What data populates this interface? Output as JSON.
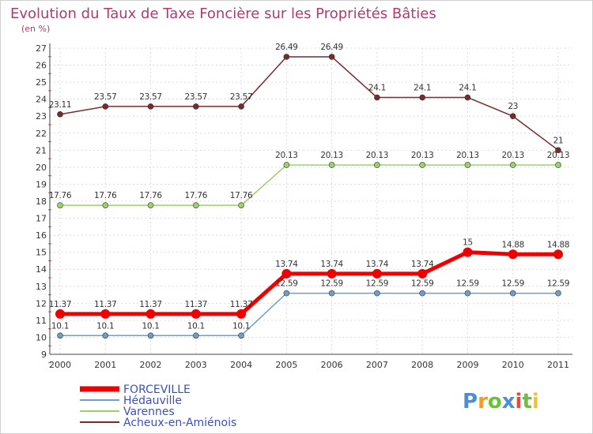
{
  "chart_data": {
    "type": "line",
    "title": "Evolution du Taux de Taxe Foncière sur les Propriétés Bâties",
    "subtitle": "(en %)",
    "xlabel": "",
    "ylabel": "(en %)",
    "ylim": [
      9,
      27
    ],
    "yticks": [
      9,
      10,
      11,
      12,
      13,
      14,
      15,
      16,
      17,
      18,
      19,
      20,
      21,
      22,
      23,
      24,
      25,
      26,
      27
    ],
    "x": [
      "2000",
      "2001",
      "2002",
      "2003",
      "2004",
      "2005",
      "2006",
      "2007",
      "2008",
      "2009",
      "2010",
      "2011"
    ],
    "grid": true,
    "legend_position": "bottom-left",
    "series": [
      {
        "name": "FORCEVILLE",
        "color": "#ee0000",
        "values": [
          11.37,
          11.37,
          11.37,
          11.37,
          11.37,
          13.74,
          13.74,
          13.74,
          13.74,
          15,
          14.88,
          14.88
        ],
        "labels": [
          "11.37",
          "11.37",
          "11.37",
          "11.37",
          "11.37",
          "13.74",
          "13.74",
          "13.74",
          "13.74",
          "15",
          "14.88",
          "14.88"
        ]
      },
      {
        "name": "Hédauville",
        "color": "#6f9fc9",
        "values": [
          10.1,
          10.1,
          10.1,
          10.1,
          10.1,
          12.59,
          12.59,
          12.59,
          12.59,
          12.59,
          12.59,
          12.59
        ],
        "labels": [
          "10.1",
          "10.1",
          "10.1",
          "10.1",
          "10.1",
          "12.59",
          "12.59",
          "12.59",
          "12.59",
          "12.59",
          "12.59",
          "12.59"
        ]
      },
      {
        "name": "Varennes",
        "color": "#9ad26a",
        "values": [
          17.76,
          17.76,
          17.76,
          17.76,
          17.76,
          20.13,
          20.13,
          20.13,
          20.13,
          20.13,
          20.13,
          20.13
        ],
        "labels": [
          "17.76",
          "17.76",
          "17.76",
          "17.76",
          "17.76",
          "20.13",
          "20.13",
          "20.13",
          "20.13",
          "20.13",
          "20.13",
          "20.13"
        ]
      },
      {
        "name": "Acheux-en-Amiénois",
        "color": "#7a2a2a",
        "values": [
          23.11,
          23.57,
          23.57,
          23.57,
          23.57,
          26.49,
          26.49,
          24.1,
          24.1,
          24.1,
          23,
          21
        ],
        "labels": [
          "23.11",
          "23.57",
          "23.57",
          "23.57",
          "23.57",
          "26.49",
          "26.49",
          "24.1",
          "24.1",
          "24.1",
          "23",
          "21"
        ]
      }
    ]
  },
  "watermark": {
    "text": "Proxiti",
    "colors": [
      "#4a8fd8",
      "#f39a2a",
      "#6cbf3a",
      "#4a8fd8",
      "#e84a3a",
      "#6cbf3a",
      "#f3c42a"
    ]
  }
}
